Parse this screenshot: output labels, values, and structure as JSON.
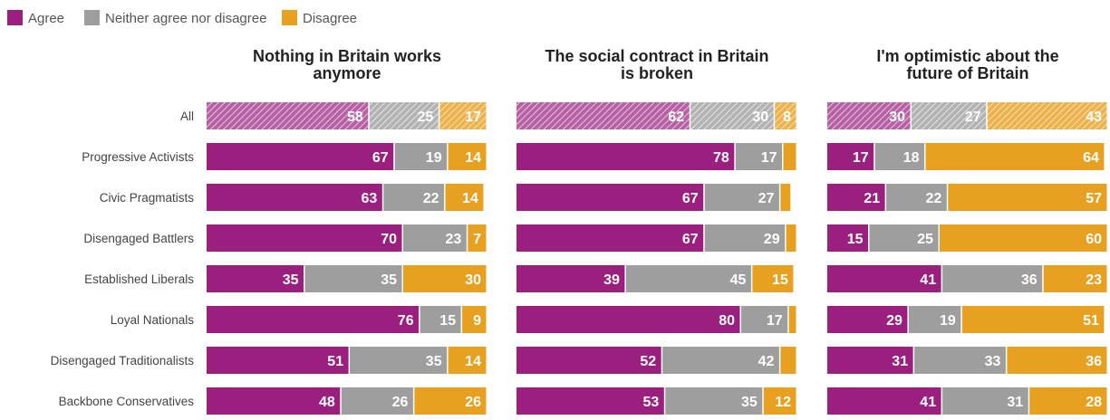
{
  "legend": [
    {
      "label": "Agree",
      "color": "#9b1f7e"
    },
    {
      "label": "Neither agree nor disagree",
      "color": "#9e9e9e"
    },
    {
      "label": "Disagree",
      "color": "#e8a020"
    }
  ],
  "chart_data": [
    {
      "type": "bar",
      "title": "Nothing in Britain works anymore",
      "categories": [
        "All",
        "Progressive Activists",
        "Civic Pragmatists",
        "Disengaged Battlers",
        "Established Liberals",
        "Loyal Nationals",
        "Disengaged Traditionalists",
        "Backbone Conservatives"
      ],
      "series": [
        {
          "name": "Agree",
          "values": [
            58,
            67,
            63,
            70,
            35,
            76,
            51,
            48
          ]
        },
        {
          "name": "Neither agree nor disagree",
          "values": [
            25,
            19,
            22,
            23,
            35,
            15,
            35,
            26
          ]
        },
        {
          "name": "Disagree",
          "values": [
            17,
            14,
            14,
            7,
            30,
            9,
            14,
            26
          ]
        }
      ],
      "stacked": true,
      "orientation": "horizontal",
      "xlim": [
        0,
        100
      ]
    },
    {
      "type": "bar",
      "title": "The social contract in Britain is broken",
      "categories": [
        "All",
        "Progressive Activists",
        "Civic Pragmatists",
        "Disengaged Battlers",
        "Established Liberals",
        "Loyal Nationals",
        "Disengaged Traditionalists",
        "Backbone Conservatives"
      ],
      "series": [
        {
          "name": "Agree",
          "values": [
            62,
            78,
            67,
            67,
            39,
            80,
            52,
            53
          ]
        },
        {
          "name": "Neither agree nor disagree",
          "values": [
            30,
            17,
            27,
            29,
            45,
            17,
            42,
            35
          ]
        },
        {
          "name": "Disagree",
          "values": [
            8,
            5,
            4,
            4,
            15,
            3,
            6,
            12
          ],
          "shown_labels": [
            8,
            null,
            null,
            null,
            15,
            null,
            null,
            12
          ]
        }
      ],
      "stacked": true,
      "orientation": "horizontal",
      "xlim": [
        0,
        100
      ]
    },
    {
      "type": "bar",
      "title": "I'm optimistic about the future of Britain",
      "categories": [
        "All",
        "Progressive Activists",
        "Civic Pragmatists",
        "Disengaged Battlers",
        "Established Liberals",
        "Loyal Nationals",
        "Disengaged Traditionalists",
        "Backbone Conservatives"
      ],
      "series": [
        {
          "name": "Agree",
          "values": [
            30,
            17,
            21,
            15,
            41,
            29,
            31,
            41
          ]
        },
        {
          "name": "Neither agree nor disagree",
          "values": [
            27,
            18,
            22,
            25,
            36,
            19,
            33,
            31
          ]
        },
        {
          "name": "Disagree",
          "values": [
            43,
            64,
            57,
            60,
            23,
            51,
            36,
            28
          ]
        }
      ],
      "stacked": true,
      "orientation": "horizontal",
      "xlim": [
        0,
        100
      ]
    }
  ]
}
